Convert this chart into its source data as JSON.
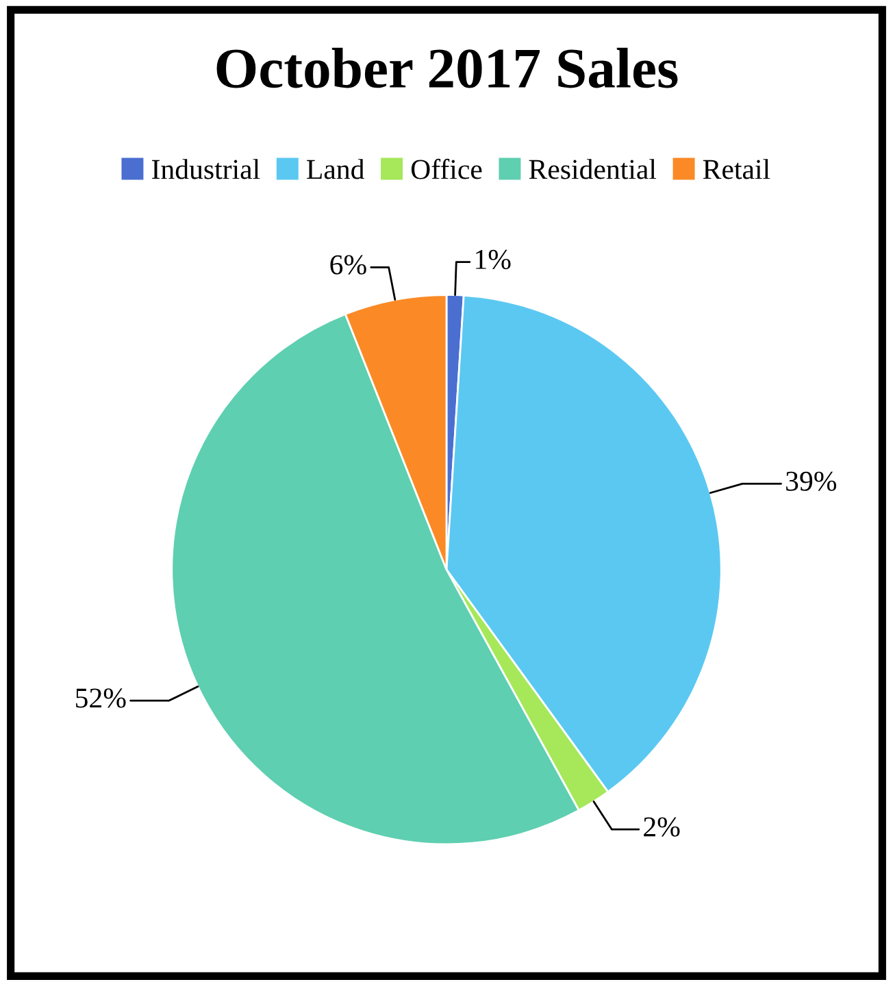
{
  "chart_data": {
    "type": "pie",
    "title": "October 2017 Sales",
    "categories": [
      "Industrial",
      "Land",
      "Office",
      "Residential",
      "Retail"
    ],
    "values": [
      1,
      39,
      2,
      52,
      6
    ],
    "colors": [
      "#4a6fd0",
      "#5bc8f2",
      "#a6e85a",
      "#5ecfb0",
      "#fb8a26"
    ],
    "value_labels": [
      "1%",
      "39%",
      "2%",
      "52%",
      "6%"
    ],
    "legend": "top"
  }
}
